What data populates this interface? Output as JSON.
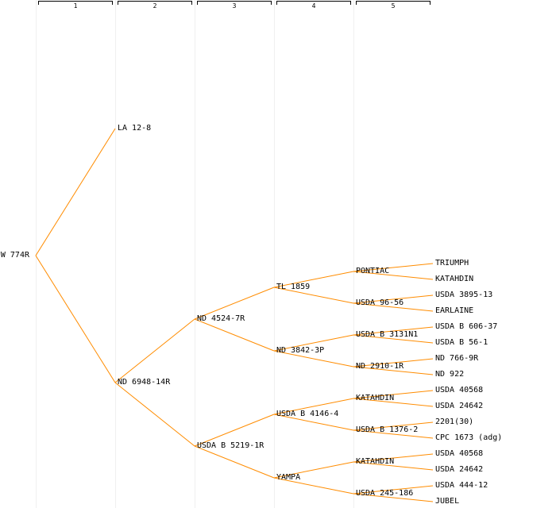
{
  "colors": {
    "edge": "#ff8c00",
    "text": "#000000",
    "background": "#ffffff",
    "generation_line": "#f0f0f0"
  },
  "generations": [
    "1",
    "2",
    "3",
    "4",
    "5"
  ],
  "tree": {
    "label": "W 774R",
    "children": [
      {
        "label": "LA 12-8"
      },
      {
        "label": "ND 6948-14R",
        "children": [
          {
            "label": "ND 4524-7R",
            "children": [
              {
                "label": "TL 1859",
                "children": [
                  {
                    "label": "PONTIAC",
                    "children": [
                      {
                        "label": "TRIUMPH"
                      },
                      {
                        "label": "KATAHDIN"
                      }
                    ]
                  },
                  {
                    "label": "USDA 96-56",
                    "children": [
                      {
                        "label": "USDA 3895-13"
                      },
                      {
                        "label": "EARLAINE"
                      }
                    ]
                  }
                ]
              },
              {
                "label": "ND 3842-3P",
                "children": [
                  {
                    "label": "USDA B 3131N1",
                    "children": [
                      {
                        "label": "USDA B 606-37"
                      },
                      {
                        "label": "USDA B 56-1"
                      }
                    ]
                  },
                  {
                    "label": "ND 2910-1R",
                    "children": [
                      {
                        "label": "ND 766-9R"
                      },
                      {
                        "label": "ND 922"
                      }
                    ]
                  }
                ]
              }
            ]
          },
          {
            "label": "USDA B 5219-1R",
            "children": [
              {
                "label": "USDA B 4146-4",
                "children": [
                  {
                    "label": "KATAHDIN",
                    "children": [
                      {
                        "label": "USDA 40568"
                      },
                      {
                        "label": "USDA 24642"
                      }
                    ]
                  },
                  {
                    "label": "USDA B 1376-2",
                    "children": [
                      {
                        "label": "2201(30)"
                      },
                      {
                        "label": "CPC 1673 (adg)"
                      }
                    ]
                  }
                ]
              },
              {
                "label": "YAMPA",
                "children": [
                  {
                    "label": "KATAHDIN",
                    "children": [
                      {
                        "label": "USDA 40568"
                      },
                      {
                        "label": "USDA 24642"
                      }
                    ]
                  },
                  {
                    "label": "USDA 245-186",
                    "children": [
                      {
                        "label": "USDA 444-12"
                      },
                      {
                        "label": "JUBEL"
                      }
                    ]
                  }
                ]
              }
            ]
          }
        ]
      }
    ]
  }
}
